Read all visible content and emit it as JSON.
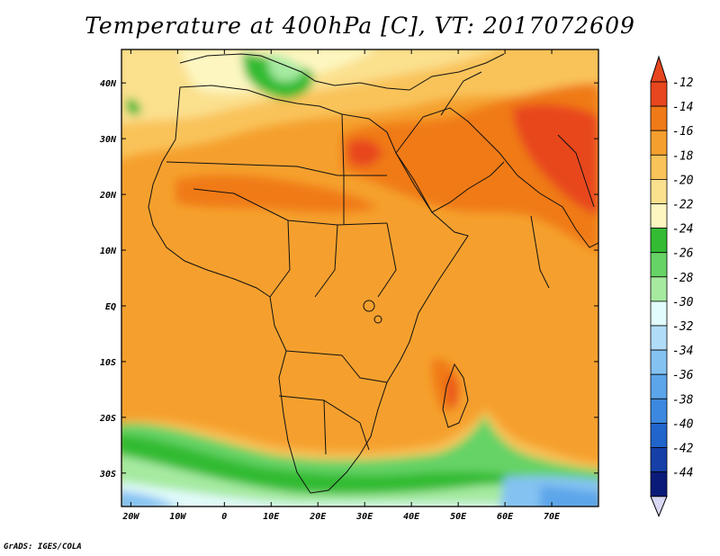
{
  "title": "Temperature at 400hPa [C], VT: 2017072609",
  "credit": "GrADS: IGES/COLA",
  "map": {
    "lon_range": [
      -22,
      80
    ],
    "lat_range": [
      -36,
      46
    ],
    "lon_ticks": [
      {
        "value": -20,
        "label": "20W"
      },
      {
        "value": -10,
        "label": "10W"
      },
      {
        "value": 0,
        "label": "0"
      },
      {
        "value": 10,
        "label": "10E"
      },
      {
        "value": 20,
        "label": "20E"
      },
      {
        "value": 30,
        "label": "30E"
      },
      {
        "value": 40,
        "label": "40E"
      },
      {
        "value": 50,
        "label": "50E"
      },
      {
        "value": 60,
        "label": "60E"
      },
      {
        "value": 70,
        "label": "70E"
      }
    ],
    "lat_ticks": [
      {
        "value": 40,
        "label": "40N"
      },
      {
        "value": 30,
        "label": "30N"
      },
      {
        "value": 20,
        "label": "20N"
      },
      {
        "value": 10,
        "label": "10N"
      },
      {
        "value": 0,
        "label": "EQ"
      },
      {
        "value": -10,
        "label": "10S"
      },
      {
        "value": -20,
        "label": "20S"
      },
      {
        "value": -30,
        "label": "30S"
      }
    ]
  },
  "colorbar": {
    "levels": [
      {
        "label": "-12",
        "color": "#e8461e"
      },
      {
        "label": "-14",
        "color": "#f07a18"
      },
      {
        "label": "-16",
        "color": "#f5a02e"
      },
      {
        "label": "-18",
        "color": "#f9c35a"
      },
      {
        "label": "-20",
        "color": "#fbe08e"
      },
      {
        "label": "-22",
        "color": "#fdf6c0"
      },
      {
        "label": "-24",
        "color": "#33bb33"
      },
      {
        "label": "-26",
        "color": "#66d366"
      },
      {
        "label": "-28",
        "color": "#a6eaa0"
      },
      {
        "label": "-30",
        "color": "#e2fbfb"
      },
      {
        "label": "-32",
        "color": "#b0dcf8"
      },
      {
        "label": "-34",
        "color": "#84c2f2"
      },
      {
        "label": "-36",
        "color": "#5ca5ea"
      },
      {
        "label": "-38",
        "color": "#3c88e0"
      },
      {
        "label": "-40",
        "color": "#2164cc"
      },
      {
        "label": "-42",
        "color": "#163fa8"
      },
      {
        "label": "-44",
        "color": "#0a1a78"
      }
    ],
    "top_triangle_color": "#e8461e",
    "bottom_triangle_color": "#d8d8f4"
  }
}
